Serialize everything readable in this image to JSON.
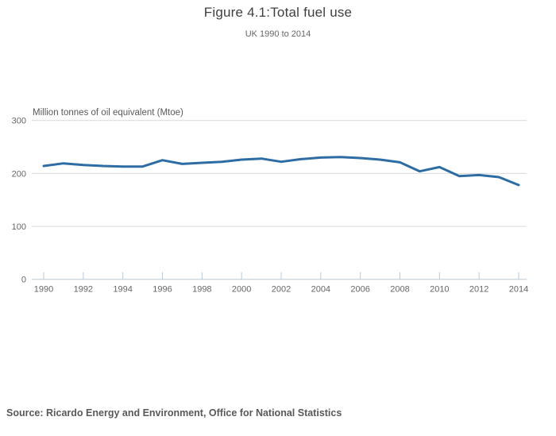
{
  "chart": {
    "title": "Figure 4.1:Total fuel use",
    "subtitle": "UK 1990 to 2014",
    "source": "Source: Ricardo Energy and Environment, Office for National Statistics"
  },
  "chart_data": {
    "type": "line",
    "title": "Figure 4.1:Total fuel use",
    "subtitle": "UK 1990 to 2014",
    "xlabel": "",
    "ylabel": "Million tonnes of oil equivalent (Mtoe)",
    "x": [
      1990,
      1991,
      1992,
      1993,
      1994,
      1995,
      1996,
      1997,
      1998,
      1999,
      2000,
      2001,
      2002,
      2003,
      2004,
      2005,
      2006,
      2007,
      2008,
      2009,
      2010,
      2011,
      2012,
      2013,
      2014
    ],
    "series": [
      {
        "name": "Total fuel use",
        "values": [
          214,
          219,
          216,
          214,
          213,
          213,
          225,
          218,
          220,
          222,
          226,
          228,
          222,
          227,
          230,
          231,
          229,
          226,
          221,
          204,
          212,
          195,
          197,
          193,
          178
        ]
      }
    ],
    "x_ticks": [
      1990,
      1992,
      1994,
      1996,
      1998,
      2000,
      2002,
      2004,
      2006,
      2008,
      2010,
      2012,
      2014
    ],
    "y_ticks": [
      0,
      100,
      200,
      300
    ],
    "ylim": [
      0,
      300
    ],
    "grid": true,
    "legend_position": "none"
  },
  "colors": {
    "line": "#2e6da4",
    "gridline": "#d9d9d9",
    "axis": "#b9c9d9",
    "tick_label": "#666666",
    "title_text": "#404040",
    "source_text": "#595959"
  }
}
